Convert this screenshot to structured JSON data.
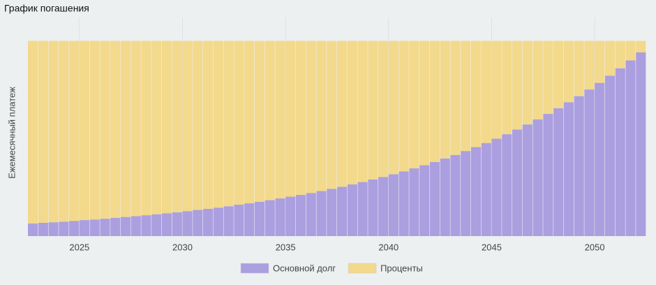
{
  "chart_data": {
    "type": "stacked-bar",
    "title": "График погашения",
    "y_label": "Ежемесячный платеж",
    "x": [
      2022.5,
      2023,
      2023.5,
      2024,
      2024.5,
      2025,
      2025.5,
      2026,
      2026.5,
      2027,
      2027.5,
      2028,
      2028.5,
      2029,
      2029.5,
      2030,
      2030.5,
      2031,
      2031.5,
      2032,
      2032.5,
      2033,
      2033.5,
      2034,
      2034.5,
      2035,
      2035.5,
      2036,
      2036.5,
      2037,
      2037.5,
      2038,
      2038.5,
      2039,
      2039.5,
      2040,
      2040.5,
      2041,
      2041.5,
      2042,
      2042.5,
      2043,
      2043.5,
      2044,
      2044.5,
      2045,
      2045.5,
      2046,
      2046.5,
      2047,
      2047.5,
      2048,
      2048.5,
      2049,
      2049.5,
      2050,
      2050.5,
      2051,
      2051.5,
      2052
    ],
    "series": [
      {
        "name": "Основной долг",
        "color": "#ab9fe0",
        "values": [
          6.5,
          6.8,
          7.1,
          7.4,
          7.8,
          8.2,
          8.5,
          8.9,
          9.3,
          9.8,
          10.2,
          10.7,
          11.2,
          11.7,
          12.2,
          12.8,
          13.4,
          14.0,
          14.6,
          15.3,
          16.1,
          16.8,
          17.6,
          18.4,
          19.3,
          20.2,
          21.1,
          22.1,
          23.1,
          24.2,
          25.3,
          26.5,
          27.7,
          29.0,
          30.3,
          31.7,
          33.2,
          34.7,
          36.3,
          38.0,
          39.8,
          41.6,
          43.6,
          45.6,
          47.7,
          49.9,
          52.2,
          54.6,
          57.2,
          59.8,
          62.6,
          65.5,
          68.6,
          71.7,
          75.1,
          78.5,
          82.2,
          86.0,
          90.0,
          94.1
        ]
      },
      {
        "name": "Проценты",
        "color": "#f3d98b",
        "values": [
          93.5,
          93.2,
          92.9,
          92.6,
          92.2,
          91.8,
          91.5,
          91.1,
          90.7,
          90.2,
          89.8,
          89.3,
          88.8,
          88.3,
          87.8,
          87.2,
          86.6,
          86.0,
          85.4,
          84.7,
          83.9,
          83.2,
          82.4,
          81.6,
          80.7,
          79.8,
          78.9,
          77.9,
          76.9,
          75.8,
          74.7,
          73.5,
          72.3,
          71.0,
          69.7,
          68.3,
          66.8,
          65.3,
          63.7,
          62.0,
          60.2,
          58.4,
          56.4,
          54.4,
          52.3,
          50.1,
          47.8,
          45.4,
          42.8,
          40.2,
          37.4,
          34.5,
          31.4,
          28.3,
          24.9,
          21.5,
          17.8,
          14.0,
          10.0,
          5.9
        ]
      }
    ],
    "xlim": [
      2022.5,
      2052.5
    ],
    "xticks": [
      2025,
      2030,
      2035,
      2040,
      2045,
      2050
    ],
    "ylim": [
      0,
      112
    ],
    "grid": true,
    "legend": "bottom"
  }
}
